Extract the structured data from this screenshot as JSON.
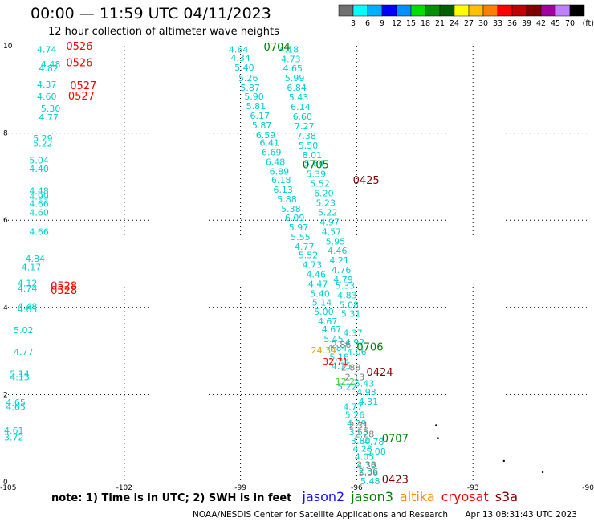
{
  "header": {
    "title": "00:00 — 11:59 UTC 04/11/2023",
    "subtitle": "12 hour collection of altimeter wave heights"
  },
  "colorbar": {
    "unit": "(ft)",
    "ticks": [
      "3",
      "6",
      "9",
      "12",
      "15",
      "18",
      "21",
      "24",
      "27",
      "30",
      "33",
      "36",
      "39",
      "42",
      "45",
      "70"
    ],
    "colors": [
      "#707070",
      "#00ffff",
      "#00b0ff",
      "#0000ff",
      "#0090ff",
      "#00e000",
      "#009000",
      "#006000",
      "#ffff00",
      "#ffc000",
      "#ff8000",
      "#ff0000",
      "#c00000",
      "#800000",
      "#a000a0",
      "#c080ff",
      "#000000"
    ]
  },
  "footer": {
    "note": "note:  1) Time is in UTC;  2) SWH is in feet",
    "satellites": [
      {
        "name": "jason2",
        "color": "#1010ff"
      },
      {
        "name": "jason3",
        "color": "#008000"
      },
      {
        "name": "altika",
        "color": "#ff8c00"
      },
      {
        "name": "cryosat",
        "color": "#ff0000"
      },
      {
        "name": "s3a",
        "color": "#800000"
      }
    ],
    "credit": "NOAA/NESDIS Center for Satellite Applications and Research",
    "timestamp": "Apr 13 08:31:43 UTC 2023"
  },
  "chart_data": {
    "type": "scatter",
    "title": "00:00 — 11:59 UTC 04/11/2023",
    "subtitle": "12 hour collection of altimeter wave heights",
    "xlabel": "",
    "ylabel": "",
    "xlim": [
      -105,
      -90
    ],
    "ylim": [
      0,
      10
    ],
    "xticks": [
      "-105",
      "-102",
      "-99",
      "-96",
      "-93",
      "-90"
    ],
    "yticks": [
      "0",
      "2",
      "4",
      "6",
      "8",
      "10"
    ],
    "grid": true,
    "series": [
      {
        "name": "jason3",
        "color": "#00d0d0",
        "points": [
          {
            "x": -104.0,
            "y": 9.92,
            "v": "4.74"
          },
          {
            "x": -103.9,
            "y": 9.58,
            "v": "4.48"
          },
          {
            "x": -103.95,
            "y": 9.48,
            "v": "4.82"
          },
          {
            "x": -104.0,
            "y": 9.12,
            "v": "4.37"
          },
          {
            "x": -104.0,
            "y": 8.84,
            "v": "4.60"
          },
          {
            "x": -103.9,
            "y": 8.56,
            "v": "5.30"
          },
          {
            "x": -103.95,
            "y": 8.36,
            "v": "4.77"
          },
          {
            "x": -104.1,
            "y": 7.88,
            "v": "5.29"
          },
          {
            "x": -104.1,
            "y": 7.76,
            "v": "5.22"
          },
          {
            "x": -104.2,
            "y": 7.38,
            "v": "5.04"
          },
          {
            "x": -104.2,
            "y": 7.18,
            "v": "4.40"
          },
          {
            "x": -104.2,
            "y": 6.68,
            "v": "4.48"
          },
          {
            "x": -104.2,
            "y": 6.55,
            "v": "4.99"
          },
          {
            "x": -104.2,
            "y": 6.38,
            "v": "4.66"
          },
          {
            "x": -104.2,
            "y": 6.18,
            "v": "4.60"
          },
          {
            "x": -104.2,
            "y": 5.74,
            "v": "4.66"
          },
          {
            "x": -104.3,
            "y": 5.12,
            "v": "4.84"
          },
          {
            "x": -104.4,
            "y": 4.93,
            "v": "4.17"
          },
          {
            "x": -104.5,
            "y": 4.56,
            "v": "4.12"
          },
          {
            "x": -104.5,
            "y": 4.44,
            "v": "4.74"
          },
          {
            "x": -104.5,
            "y": 4.02,
            "v": "4.48"
          },
          {
            "x": -104.5,
            "y": 3.96,
            "v": "4.65"
          },
          {
            "x": -104.6,
            "y": 3.48,
            "v": "5.02"
          },
          {
            "x": -104.6,
            "y": 2.98,
            "v": "4.77"
          },
          {
            "x": -104.7,
            "y": 2.48,
            "v": "5.14"
          },
          {
            "x": -104.7,
            "y": 2.4,
            "v": "4.13"
          },
          {
            "x": -104.8,
            "y": 1.82,
            "v": "4.65"
          },
          {
            "x": -104.8,
            "y": 1.72,
            "v": "4.65"
          },
          {
            "x": -104.85,
            "y": 1.18,
            "v": "4.61"
          },
          {
            "x": -104.85,
            "y": 1.02,
            "v": "3.72"
          },
          {
            "x": -99.05,
            "y": 9.92,
            "v": "4.64"
          },
          {
            "x": -99.0,
            "y": 9.72,
            "v": "4.34"
          },
          {
            "x": -98.9,
            "y": 9.5,
            "v": "5.40"
          },
          {
            "x": -98.8,
            "y": 9.26,
            "v": "5.26"
          },
          {
            "x": -98.75,
            "y": 9.04,
            "v": "5.87"
          },
          {
            "x": -98.65,
            "y": 8.84,
            "v": "5.90"
          },
          {
            "x": -98.6,
            "y": 8.62,
            "v": "5.81"
          },
          {
            "x": -98.5,
            "y": 8.4,
            "v": "6.17"
          },
          {
            "x": -98.45,
            "y": 8.18,
            "v": "5.87"
          },
          {
            "x": -98.35,
            "y": 7.96,
            "v": "6.59"
          },
          {
            "x": -98.25,
            "y": 7.78,
            "v": "6.41"
          },
          {
            "x": -98.2,
            "y": 7.56,
            "v": "6.69"
          },
          {
            "x": -98.1,
            "y": 7.34,
            "v": "6.48"
          },
          {
            "x": -98.0,
            "y": 7.12,
            "v": "6.89"
          },
          {
            "x": -97.95,
            "y": 6.92,
            "v": "6.18"
          },
          {
            "x": -97.9,
            "y": 6.7,
            "v": "6.13"
          },
          {
            "x": -97.8,
            "y": 6.48,
            "v": "5.88"
          },
          {
            "x": -97.7,
            "y": 6.26,
            "v": "5.38"
          },
          {
            "x": -97.6,
            "y": 6.06,
            "v": "6.09"
          },
          {
            "x": -97.5,
            "y": 5.84,
            "v": "5.97"
          },
          {
            "x": -97.45,
            "y": 5.62,
            "v": "5.55"
          },
          {
            "x": -97.35,
            "y": 5.4,
            "v": "4.77"
          },
          {
            "x": -97.25,
            "y": 5.2,
            "v": "5.52"
          },
          {
            "x": -97.15,
            "y": 4.98,
            "v": "4.73"
          },
          {
            "x": -97.05,
            "y": 4.76,
            "v": "4.46"
          },
          {
            "x": -97.0,
            "y": 4.54,
            "v": "4.47"
          },
          {
            "x": -96.95,
            "y": 4.32,
            "v": "5.40"
          },
          {
            "x": -96.9,
            "y": 4.12,
            "v": "5.14"
          },
          {
            "x": -96.85,
            "y": 3.9,
            "v": "5.00"
          },
          {
            "x": -96.75,
            "y": 3.68,
            "v": "4.67"
          },
          {
            "x": -96.65,
            "y": 3.5,
            "v": "4.67"
          },
          {
            "x": -96.6,
            "y": 3.28,
            "v": "5.45"
          },
          {
            "x": -96.5,
            "y": 3.08,
            "v": "4.84"
          },
          {
            "x": -96.45,
            "y": 2.86,
            "v": "5.18"
          },
          {
            "x": -96.4,
            "y": 2.66,
            "v": "4.15"
          },
          {
            "x": -96.25,
            "y": 2.18,
            "v": "5.22"
          },
          {
            "x": -96.1,
            "y": 1.72,
            "v": "4.77"
          },
          {
            "x": -96.05,
            "y": 1.54,
            "v": "5.26"
          },
          {
            "x": -96.0,
            "y": 1.34,
            "v": "4.29"
          },
          {
            "x": -95.95,
            "y": 1.14,
            "v": "3.53"
          },
          {
            "x": -95.9,
            "y": 0.94,
            "v": "3.80"
          },
          {
            "x": -95.85,
            "y": 0.76,
            "v": "4.28"
          },
          {
            "x": -95.8,
            "y": 0.58,
            "v": "4.05"
          },
          {
            "x": -95.75,
            "y": 0.38,
            "v": "4.79"
          },
          {
            "x": -95.7,
            "y": 0.2,
            "v": "5.06"
          },
          {
            "x": -95.65,
            "y": 0.02,
            "v": "5.48"
          },
          {
            "x": -97.75,
            "y": 9.92,
            "v": "4.18"
          },
          {
            "x": -97.7,
            "y": 9.7,
            "v": "4.73"
          },
          {
            "x": -97.65,
            "y": 9.48,
            "v": "4.65"
          },
          {
            "x": -97.6,
            "y": 9.26,
            "v": "5.99"
          },
          {
            "x": -97.55,
            "y": 9.04,
            "v": "6.84"
          },
          {
            "x": -97.5,
            "y": 8.82,
            "v": "5.43"
          },
          {
            "x": -97.45,
            "y": 8.6,
            "v": "6.14"
          },
          {
            "x": -97.4,
            "y": 8.38,
            "v": "6.60"
          },
          {
            "x": -97.35,
            "y": 8.16,
            "v": "7.27"
          },
          {
            "x": -97.3,
            "y": 7.94,
            "v": "7.38"
          },
          {
            "x": -97.25,
            "y": 7.72,
            "v": "5.50"
          },
          {
            "x": -97.15,
            "y": 7.5,
            "v": "8.01"
          },
          {
            "x": -97.1,
            "y": 7.3,
            "v": "5.64"
          },
          {
            "x": -97.05,
            "y": 7.06,
            "v": "5.39"
          },
          {
            "x": -96.95,
            "y": 6.84,
            "v": "5.52"
          },
          {
            "x": -96.85,
            "y": 6.62,
            "v": "6.20"
          },
          {
            "x": -96.8,
            "y": 6.4,
            "v": "5.23"
          },
          {
            "x": -96.75,
            "y": 6.18,
            "v": "5.22"
          },
          {
            "x": -96.7,
            "y": 5.96,
            "v": "4.97"
          },
          {
            "x": -96.65,
            "y": 5.74,
            "v": "4.57"
          },
          {
            "x": -96.55,
            "y": 5.52,
            "v": "5.95"
          },
          {
            "x": -96.5,
            "y": 5.3,
            "v": "4.46"
          },
          {
            "x": -96.45,
            "y": 5.08,
            "v": "4.21"
          },
          {
            "x": -96.4,
            "y": 4.86,
            "v": "4.76"
          },
          {
            "x": -96.35,
            "y": 4.64,
            "v": "4.79"
          },
          {
            "x": -96.3,
            "y": 4.5,
            "v": "5.33"
          },
          {
            "x": -96.25,
            "y": 4.28,
            "v": "4.83"
          },
          {
            "x": -96.2,
            "y": 4.06,
            "v": "5.08"
          },
          {
            "x": -96.15,
            "y": 3.86,
            "v": "5.31"
          },
          {
            "x": -96.1,
            "y": 3.42,
            "v": "4.37"
          },
          {
            "x": -96.05,
            "y": 3.2,
            "v": "4.92"
          },
          {
            "x": -96.0,
            "y": 2.98,
            "v": "4.06"
          },
          {
            "x": -95.8,
            "y": 2.26,
            "v": "5.43"
          },
          {
            "x": -95.75,
            "y": 2.06,
            "v": "4.93"
          },
          {
            "x": -95.7,
            "y": 1.84,
            "v": "4.31"
          },
          {
            "x": -95.55,
            "y": 0.92,
            "v": "4.78"
          },
          {
            "x": -95.5,
            "y": 0.7,
            "v": "5.08"
          }
        ]
      },
      {
        "name": "s3a",
        "color": "#808080",
        "points": [
          {
            "x": -96.4,
            "y": 3.15,
            "v": "2.86"
          },
          {
            "x": -96.15,
            "y": 2.62,
            "v": "2.88"
          },
          {
            "x": -96.05,
            "y": 2.4,
            "v": "2.13"
          },
          {
            "x": -95.95,
            "y": 1.3,
            "v": "2.31"
          },
          {
            "x": -95.8,
            "y": 1.1,
            "v": "2.28"
          },
          {
            "x": -95.75,
            "y": 0.4,
            "v": "2.38"
          },
          {
            "x": -95.7,
            "y": 0.24,
            "v": "2.36"
          }
        ]
      },
      {
        "name": "altika",
        "color": "#ff9900",
        "points": [
          {
            "x": -96.85,
            "y": 3.02,
            "v": "24.34"
          }
        ]
      },
      {
        "name": "cryosat",
        "color": "#ff0000",
        "points": [
          {
            "x": -96.55,
            "y": 2.76,
            "v": "32.71"
          }
        ]
      },
      {
        "name": "jason3-green",
        "color": "#40d040",
        "points": [
          {
            "x": -96.3,
            "y": 2.3,
            "v": "12.2"
          }
        ]
      }
    ],
    "time_labels": [
      {
        "x": -103.5,
        "y": 10.0,
        "v": "0526",
        "color": "#ff0000"
      },
      {
        "x": -103.5,
        "y": 9.62,
        "v": "0526",
        "color": "#ff0000"
      },
      {
        "x": -103.4,
        "y": 9.1,
        "v": "0527",
        "color": "#ff0000"
      },
      {
        "x": -103.45,
        "y": 8.86,
        "v": "0527",
        "color": "#ff0000"
      },
      {
        "x": -103.9,
        "y": 4.5,
        "v": "0528",
        "color": "#ff0000"
      },
      {
        "x": -103.9,
        "y": 4.4,
        "v": "0528",
        "color": "#ff0000"
      },
      {
        "x": -98.4,
        "y": 9.98,
        "v": "0704",
        "color": "#008000"
      },
      {
        "x": -97.4,
        "y": 7.28,
        "v": "0705",
        "color": "#008000"
      },
      {
        "x": -96.0,
        "y": 3.1,
        "v": "0706",
        "color": "#008000"
      },
      {
        "x": -95.35,
        "y": 1.0,
        "v": "0707",
        "color": "#008000"
      },
      {
        "x": -96.1,
        "y": 6.92,
        "v": "0425",
        "color": "#800000"
      },
      {
        "x": -95.75,
        "y": 2.52,
        "v": "0424",
        "color": "#800000"
      },
      {
        "x": -95.35,
        "y": 0.06,
        "v": "0423",
        "color": "#800000"
      }
    ],
    "coastline": [
      {
        "x": -93.95,
        "y": 1.3
      },
      {
        "x": -93.9,
        "y": 1.0
      },
      {
        "x": -92.2,
        "y": 0.48
      },
      {
        "x": -91.2,
        "y": 0.22
      }
    ]
  }
}
